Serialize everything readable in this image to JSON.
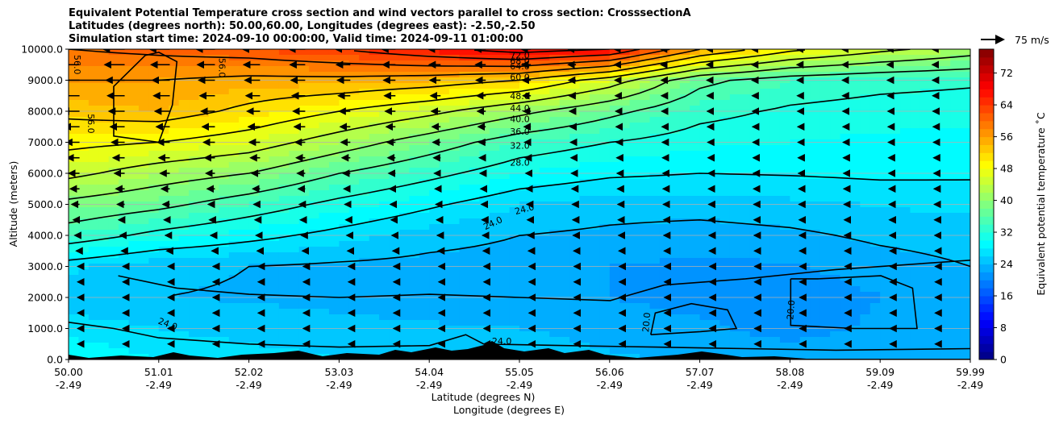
{
  "chart_data": {
    "type": "heatmap",
    "title_lines": [
      "Equivalent Potential Temperature cross section and wind vectors parallel to cross section: CrosssectionA",
      "Latitudes (degrees north): 50.00,60.00, Longitudes (degrees east): -2.50,-2.50",
      "Simulation start time: 2024-09-10 00:00:00, Valid time: 2024-09-11 01:00:00"
    ],
    "xlabel_lat": "Latitude (degrees N)",
    "xlabel_lon": "Longitude (degrees E)",
    "ylabel": "Altitude (meters)",
    "colorbar_label": "Equivalent potential temperature ˚C",
    "x_range": [
      50.0,
      59.99
    ],
    "ylim": [
      0,
      10000
    ],
    "x_ticks_lat": [
      "50.00",
      "51.01",
      "52.02",
      "53.03",
      "54.04",
      "55.05",
      "56.06",
      "57.07",
      "58.08",
      "59.09",
      "59.99"
    ],
    "x_ticks_lon": [
      "-2.49",
      "-2.49",
      "-2.49",
      "-2.49",
      "-2.49",
      "-2.49",
      "-2.49",
      "-2.49",
      "-2.49",
      "-2.49",
      "-2.49"
    ],
    "y_ticks": [
      "0.0",
      "1000.0",
      "2000.0",
      "3000.0",
      "4000.0",
      "5000.0",
      "6000.0",
      "7000.0",
      "8000.0",
      "9000.0",
      "10000.0"
    ],
    "y_tick_values": [
      0,
      1000,
      2000,
      3000,
      4000,
      5000,
      6000,
      7000,
      8000,
      9000,
      10000
    ],
    "colorbar_ticks": [
      "0",
      "8",
      "16",
      "24",
      "32",
      "40",
      "48",
      "56",
      "64",
      "72"
    ],
    "colorbar_tick_values": [
      0,
      8,
      16,
      24,
      32,
      40,
      48,
      56,
      64,
      72
    ],
    "colorbar_range": [
      0,
      78
    ],
    "quiver_key_label": "75 m/s",
    "contour_levels": [
      20,
      24,
      28,
      32,
      36,
      40,
      44,
      48,
      52,
      56,
      60,
      64,
      68,
      72
    ],
    "contour_labels": [
      "60.0",
      "64.0",
      "68.0",
      "72.0",
      "48.0",
      "44.0",
      "40.0",
      "36.0",
      "32.0",
      "28.0",
      "24.0",
      "24.0",
      "24.0",
      "24.0",
      "20.0",
      "20.0",
      "56.0",
      "56.0",
      "56.0"
    ],
    "profile_altitudes": [
      0,
      1000,
      2000,
      3000,
      4000,
      5000,
      6000,
      7000,
      8000,
      9000,
      10000
    ],
    "profiles": [
      {
        "lat": 50.0,
        "theta_e": [
          30,
          27,
          25,
          26.5,
          34,
          39,
          45,
          49,
          53,
          56,
          60
        ]
      },
      {
        "lat": 51.0,
        "theta_e": [
          28,
          26,
          24,
          24.5,
          31,
          37,
          42,
          48,
          54,
          56,
          61
        ]
      },
      {
        "lat": 52.0,
        "theta_e": [
          27,
          25,
          23.8,
          24,
          29,
          34,
          40,
          46,
          51,
          55,
          62
        ]
      },
      {
        "lat": 53.0,
        "theta_e": [
          26,
          24.5,
          23.5,
          23.5,
          27,
          31,
          36,
          42,
          48,
          55,
          64
        ]
      },
      {
        "lat": 54.0,
        "theta_e": [
          25.5,
          24.2,
          23.2,
          23.2,
          25,
          28.5,
          33,
          38,
          45,
          54,
          67
        ]
      },
      {
        "lat": 55.0,
        "theta_e": [
          24.8,
          24,
          23,
          23,
          24,
          26,
          30,
          34,
          41,
          52,
          70
        ]
      },
      {
        "lat": 56.0,
        "theta_e": [
          24.2,
          23.5,
          22,
          22,
          23.5,
          25,
          28.5,
          32,
          37,
          46,
          68
        ]
      },
      {
        "lat": 57.0,
        "theta_e": [
          23.8,
          22.5,
          21,
          21.5,
          23,
          25,
          28,
          30.5,
          33,
          37,
          56
        ]
      },
      {
        "lat": 58.0,
        "theta_e": [
          23.5,
          21,
          20.5,
          21.8,
          23.5,
          25.5,
          28.2,
          30,
          31.5,
          34,
          49
        ]
      },
      {
        "lat": 59.0,
        "theta_e": [
          23.4,
          22.5,
          22,
          23,
          24.5,
          26.2,
          28.5,
          29.6,
          30.8,
          33,
          45
        ]
      },
      {
        "lat": 59.99,
        "theta_e": [
          23.3,
          23,
          23,
          24,
          25,
          26.5,
          28.4,
          29.5,
          30.5,
          32.5,
          42
        ]
      }
    ]
  }
}
